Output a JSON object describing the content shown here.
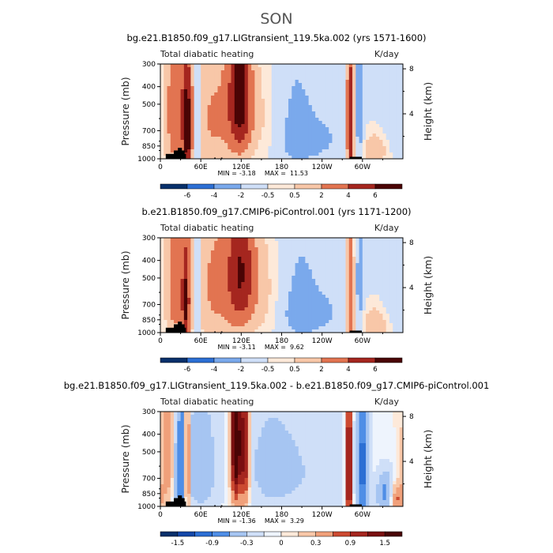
{
  "suptitle": "SON",
  "colors": {
    "cmap": [
      "#08306b",
      "#1448a8",
      "#2c6fd4",
      "#4f8ee6",
      "#7aa9ec",
      "#a6c5f2",
      "#cfdff8",
      "#eef4fd",
      "#fde9d9",
      "#f8c7a8",
      "#f0a07a",
      "#e27451",
      "#cc4a31",
      "#a5261f",
      "#7a0f10",
      "#4a0405"
    ]
  },
  "chart_data": [
    {
      "type": "heatmap",
      "title": "bg.e21.B1850.f09_g17.LIGtransient_119.5ka.002 (yrs 1571-1600)",
      "left_label": "Total diabatic heating",
      "right_label": "K/day",
      "ylabel": "Pressure (mb)",
      "y2label": "Height (km)",
      "y_ticks": [
        "300",
        "400",
        "500",
        "700",
        "850",
        "1000"
      ],
      "y2_ticks": [
        "8",
        "4"
      ],
      "x_ticks": [
        "0",
        "60E",
        "120E",
        "180",
        "120W",
        "60W"
      ],
      "min_label": "MIN =",
      "min_value": "-3.18",
      "max_label": "MAX =",
      "max_value": "11.53",
      "colorbar_labels": [
        "-6",
        "-4",
        "-2",
        "-0.5",
        "0.5",
        "2",
        "4",
        "6"
      ],
      "levels": [
        -6,
        -4,
        -2,
        -0.5,
        0.5,
        2,
        4,
        6
      ],
      "features": [
        {
          "lon": 25,
          "width": 14,
          "amp": 4.5,
          "pc": 560,
          "ps": 420
        },
        {
          "lon": 40,
          "width": 4,
          "amp": 6.5,
          "pc": 700,
          "ps": 300
        },
        {
          "lon": 55,
          "width": 3,
          "amp": -4,
          "pc": 500,
          "ps": 450
        },
        {
          "lon": 80,
          "width": 25,
          "amp": 3,
          "pc": 600,
          "ps": 400
        },
        {
          "lon": 118,
          "width": 12,
          "amp": 7,
          "pc": 450,
          "ps": 300
        },
        {
          "lon": 150,
          "width": 22,
          "amp": 2,
          "pc": 600,
          "ps": 350
        },
        {
          "lon": 195,
          "width": 35,
          "amp": -1.6,
          "pc": 650,
          "ps": 450
        },
        {
          "lon": 230,
          "width": 30,
          "amp": -1.2,
          "pc": 780,
          "ps": 120
        },
        {
          "lon": 282,
          "width": 4,
          "amp": 7,
          "pc": 650,
          "ps": 400
        },
        {
          "lon": 296,
          "width": 4,
          "amp": -2.5,
          "pc": 550,
          "ps": 400
        },
        {
          "lon": 320,
          "width": 15,
          "amp": 2.5,
          "pc": 900,
          "ps": 150
        },
        {
          "lon": 345,
          "width": 12,
          "amp": -1.2,
          "pc": 550,
          "ps": 300
        }
      ],
      "base": -0.8
    },
    {
      "type": "heatmap",
      "title": "b.e21.B1850.f09_g17.CMIP6-piControl.001 (yrs 1171-1200)",
      "left_label": "Total diabatic heating",
      "right_label": "K/day",
      "ylabel": "Pressure (mb)",
      "y2label": "Height (km)",
      "y_ticks": [
        "300",
        "400",
        "500",
        "700",
        "850",
        "1000"
      ],
      "y2_ticks": [
        "8",
        "4"
      ],
      "x_ticks": [
        "0",
        "60E",
        "120E",
        "180",
        "120W",
        "60W"
      ],
      "min_label": "MIN =",
      "min_value": "-3.11",
      "max_label": "MAX =",
      "max_value": "9.62",
      "colorbar_labels": [
        "-6",
        "-4",
        "-2",
        "-0.5",
        "0.5",
        "2",
        "4",
        "6"
      ],
      "levels": [
        -6,
        -4,
        -2,
        -0.5,
        0.5,
        2,
        4,
        6
      ],
      "features": [
        {
          "lon": 22,
          "width": 12,
          "amp": 3.5,
          "pc": 560,
          "ps": 420
        },
        {
          "lon": 38,
          "width": 4,
          "amp": 5.5,
          "pc": 700,
          "ps": 300
        },
        {
          "lon": 55,
          "width": 3,
          "amp": -3,
          "pc": 500,
          "ps": 450
        },
        {
          "lon": 85,
          "width": 30,
          "amp": 3.2,
          "pc": 550,
          "ps": 400
        },
        {
          "lon": 120,
          "width": 14,
          "amp": 5,
          "pc": 450,
          "ps": 300
        },
        {
          "lon": 155,
          "width": 22,
          "amp": 2.2,
          "pc": 600,
          "ps": 350
        },
        {
          "lon": 200,
          "width": 35,
          "amp": -1.6,
          "pc": 650,
          "ps": 450
        },
        {
          "lon": 230,
          "width": 30,
          "amp": -1.2,
          "pc": 780,
          "ps": 120
        },
        {
          "lon": 282,
          "width": 4,
          "amp": 5,
          "pc": 650,
          "ps": 400
        },
        {
          "lon": 296,
          "width": 4,
          "amp": -2,
          "pc": 550,
          "ps": 400
        },
        {
          "lon": 320,
          "width": 15,
          "amp": 2.5,
          "pc": 900,
          "ps": 150
        },
        {
          "lon": 345,
          "width": 12,
          "amp": -1.0,
          "pc": 550,
          "ps": 300
        }
      ],
      "base": -0.8
    },
    {
      "type": "heatmap",
      "title": "bg.e21.B1850.f09_g17.LIGtransient_119.5ka.002 - b.e21.B1850.f09_g17.CMIP6-piControl.001",
      "left_label": "Total diabatic heating",
      "right_label": "K/day",
      "ylabel": "Pressure (mb)",
      "y2label": "Height (km)",
      "y_ticks": [
        "300",
        "400",
        "500",
        "700",
        "850",
        "1000"
      ],
      "y2_ticks": [
        "8",
        "4"
      ],
      "x_ticks": [
        "0",
        "60E",
        "120E",
        "180",
        "120W",
        "60W"
      ],
      "min_label": "MIN =",
      "min_value": "-1.36",
      "max_label": "MAX =",
      "max_value": "3.29",
      "colorbar_labels": [
        "-1.5",
        "-0.9",
        "-0.3",
        "0",
        "0.3",
        "0.9",
        "1.5"
      ],
      "levels": [
        -1.5,
        -1.2,
        -0.9,
        -0.6,
        -0.3,
        -0.1,
        0,
        0.1,
        0.3,
        0.6,
        0.9,
        1.2,
        1.5
      ],
      "features": [
        {
          "lon": 12,
          "width": 8,
          "amp": 0.6,
          "pc": 500,
          "ps": 300
        },
        {
          "lon": 30,
          "width": 8,
          "amp": -0.8,
          "pc": 600,
          "ps": 350
        },
        {
          "lon": 40,
          "width": 3,
          "amp": 1.5,
          "pc": 600,
          "ps": 300
        },
        {
          "lon": 60,
          "width": 20,
          "amp": -0.5,
          "pc": 600,
          "ps": 350
        },
        {
          "lon": 112,
          "width": 5,
          "amp": 2.2,
          "pc": 450,
          "ps": 300
        },
        {
          "lon": 125,
          "width": 5,
          "amp": 1.5,
          "pc": 500,
          "ps": 300
        },
        {
          "lon": 160,
          "width": 30,
          "amp": -0.35,
          "pc": 600,
          "ps": 350
        },
        {
          "lon": 230,
          "width": 40,
          "amp": -0.25,
          "pc": 650,
          "ps": 400
        },
        {
          "lon": 280,
          "width": 3,
          "amp": 1.8,
          "pc": 650,
          "ps": 400
        },
        {
          "lon": 300,
          "width": 6,
          "amp": -1.0,
          "pc": 600,
          "ps": 400
        },
        {
          "lon": 335,
          "width": 10,
          "amp": -0.8,
          "pc": 850,
          "ps": 150
        },
        {
          "lon": 350,
          "width": 8,
          "amp": 0.8,
          "pc": 900,
          "ps": 120
        }
      ],
      "base": 0
    }
  ]
}
